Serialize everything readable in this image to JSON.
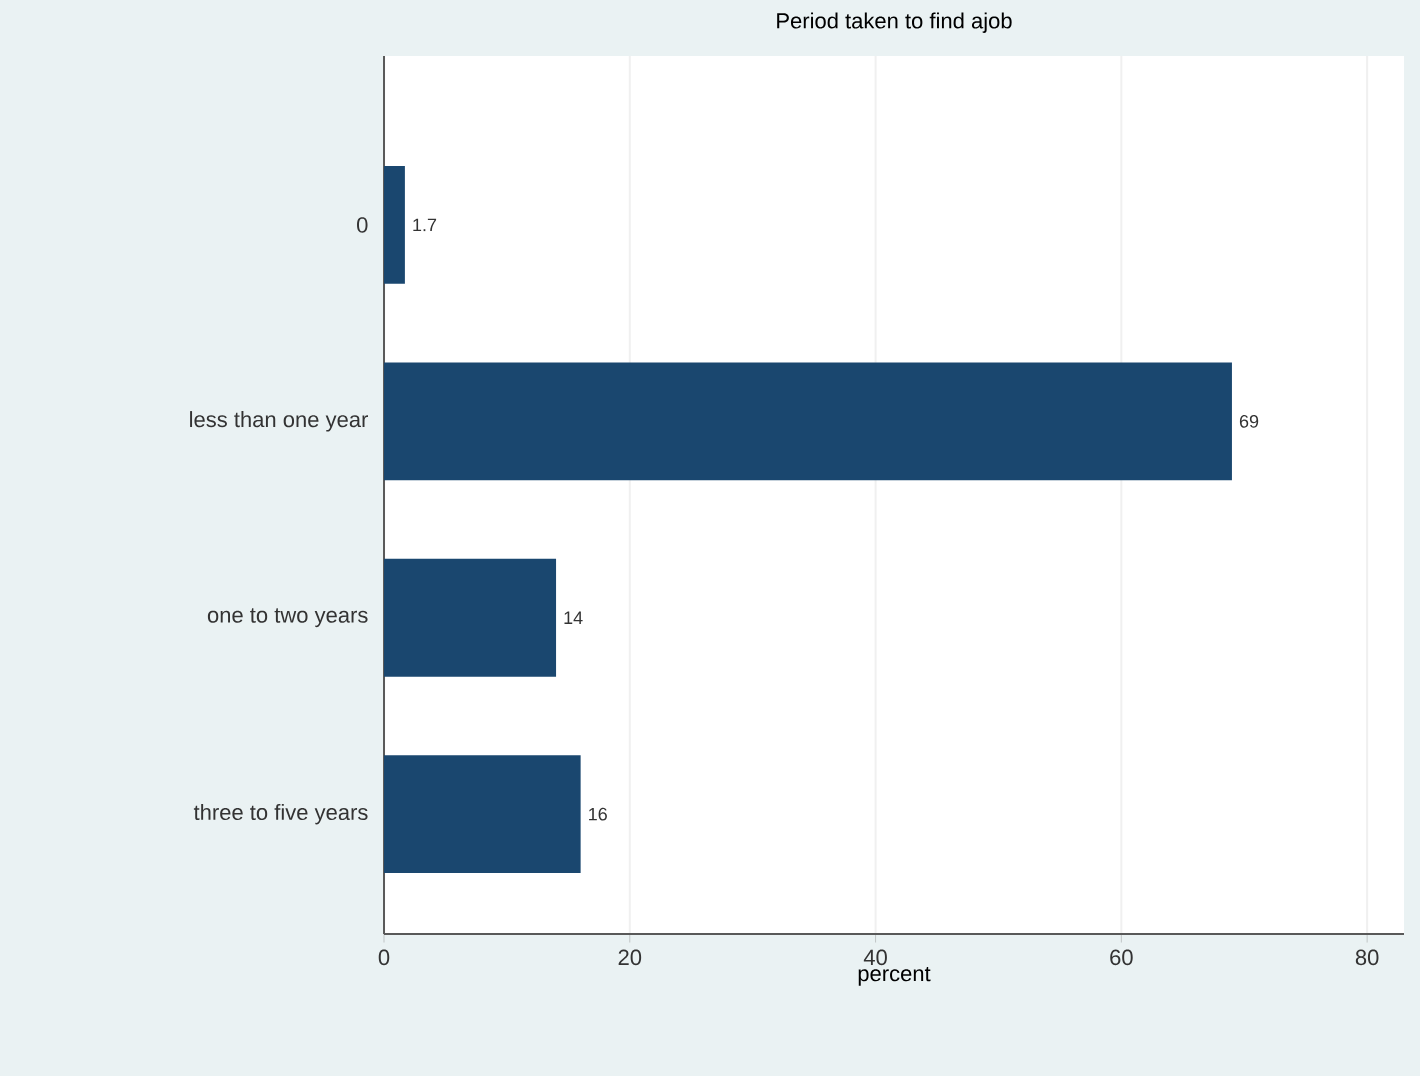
{
  "chart_data": {
    "type": "bar",
    "orientation": "horizontal",
    "title": "Period taken to find ajob",
    "xlabel": "percent",
    "categories": [
      "0",
      "less than one year",
      "one to two years",
      "three to five years"
    ],
    "values": [
      1.7,
      69,
      14,
      16
    ],
    "color": "#1a476f",
    "xlim": [
      0,
      83
    ],
    "xticks": [
      0,
      20,
      40,
      60,
      80
    ],
    "grid": "x",
    "data_labels": true
  }
}
